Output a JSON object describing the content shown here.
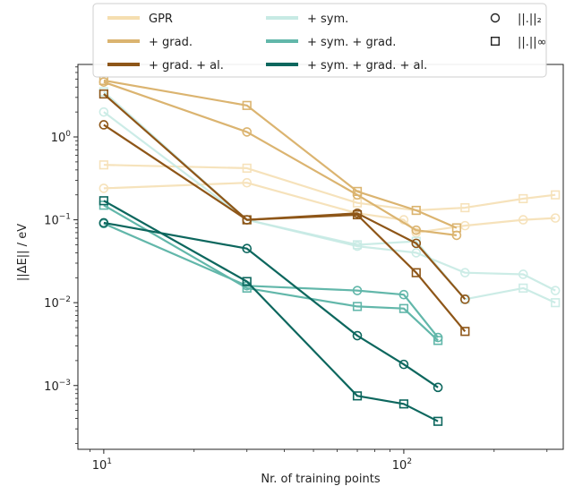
{
  "chart_data": {
    "type": "line",
    "xlabel": "Nr. of training points",
    "ylabel": "||ΔE|| / eV",
    "xscale": "log",
    "yscale": "log",
    "xlim": [
      8.2,
      340
    ],
    "ylim": [
      0.00017,
      7.5
    ],
    "x_ticks": [
      {
        "value": 10,
        "base": "10",
        "exp": "1"
      },
      {
        "value": 100,
        "base": "10",
        "exp": "2"
      }
    ],
    "y_ticks": [
      {
        "value": 0.001,
        "base": "10",
        "exp": "−3"
      },
      {
        "value": 0.01,
        "base": "10",
        "exp": "−2"
      },
      {
        "value": 0.1,
        "base": "10",
        "exp": "−1"
      },
      {
        "value": 1,
        "base": "10",
        "exp": "0"
      }
    ],
    "grid": false,
    "legend_position": "top",
    "marker_legend": [
      {
        "marker": "circle",
        "label": "||.||₂"
      },
      {
        "marker": "square",
        "label": "||.||∞"
      }
    ],
    "series": [
      {
        "name": "GPR",
        "color": "#f5deb0",
        "opacity": 0.85,
        "marker": "circle",
        "points": [
          [
            10,
            0.24
          ],
          [
            30,
            0.28
          ],
          [
            70,
            0.12
          ],
          [
            100,
            0.1
          ],
          [
            110,
            0.07
          ],
          [
            160,
            0.085
          ],
          [
            250,
            0.1
          ],
          [
            320,
            0.105
          ]
        ]
      },
      {
        "name": "GPR",
        "color": "#f5deb0",
        "opacity": 0.85,
        "marker": "square",
        "points": [
          [
            10,
            0.46
          ],
          [
            30,
            0.42
          ],
          [
            70,
            0.16
          ],
          [
            110,
            0.13
          ],
          [
            160,
            0.14
          ],
          [
            250,
            0.18
          ],
          [
            320,
            0.2
          ]
        ]
      },
      {
        "name": "+ sym.",
        "color": "#c7eae4",
        "opacity": 0.9,
        "marker": "circle",
        "points": [
          [
            10,
            2.0
          ],
          [
            30,
            0.1
          ],
          [
            70,
            0.048
          ],
          [
            110,
            0.04
          ],
          [
            160,
            0.023
          ],
          [
            250,
            0.022
          ],
          [
            320,
            0.014
          ]
        ]
      },
      {
        "name": "+ sym.",
        "color": "#c7eae4",
        "opacity": 0.9,
        "marker": "square",
        "points": [
          [
            10,
            3.5
          ],
          [
            30,
            0.1
          ],
          [
            70,
            0.05
          ],
          [
            110,
            0.055
          ],
          [
            160,
            0.011
          ],
          [
            250,
            0.015
          ],
          [
            320,
            0.01
          ]
        ]
      },
      {
        "name": "+ grad.",
        "color": "#dbb470",
        "opacity": 1,
        "marker": "circle",
        "points": [
          [
            10,
            4.6
          ],
          [
            30,
            1.15
          ],
          [
            70,
            0.2
          ],
          [
            110,
            0.075
          ],
          [
            150,
            0.065
          ]
        ]
      },
      {
        "name": "+ grad.",
        "color": "#dbb470",
        "opacity": 1,
        "marker": "square",
        "points": [
          [
            10,
            4.8
          ],
          [
            30,
            2.4
          ],
          [
            70,
            0.22
          ],
          [
            110,
            0.13
          ],
          [
            150,
            0.08
          ]
        ]
      },
      {
        "name": "+ sym. + grad.",
        "color": "#62b7aa",
        "opacity": 1,
        "marker": "circle",
        "points": [
          [
            10,
            0.09
          ],
          [
            30,
            0.016
          ],
          [
            70,
            0.014
          ],
          [
            100,
            0.0125
          ],
          [
            130,
            0.0038
          ]
        ]
      },
      {
        "name": "+ sym. + grad.",
        "color": "#62b7aa",
        "opacity": 1,
        "marker": "square",
        "points": [
          [
            10,
            0.15
          ],
          [
            30,
            0.015
          ],
          [
            70,
            0.009
          ],
          [
            100,
            0.0085
          ],
          [
            130,
            0.0035
          ]
        ]
      },
      {
        "name": "+ grad. + al.",
        "color": "#8e5618",
        "opacity": 1,
        "marker": "circle",
        "points": [
          [
            10,
            1.4
          ],
          [
            30,
            0.1
          ],
          [
            70,
            0.12
          ],
          [
            110,
            0.052
          ],
          [
            160,
            0.011
          ]
        ]
      },
      {
        "name": "+ grad. + al.",
        "color": "#8e5618",
        "opacity": 1,
        "marker": "square",
        "points": [
          [
            10,
            3.3
          ],
          [
            30,
            0.1
          ],
          [
            70,
            0.115
          ],
          [
            110,
            0.023
          ],
          [
            160,
            0.0045
          ]
        ]
      },
      {
        "name": "+ sym. + grad. + al.",
        "color": "#0d675e",
        "opacity": 1,
        "marker": "circle",
        "points": [
          [
            10,
            0.092
          ],
          [
            30,
            0.045
          ],
          [
            70,
            0.004
          ],
          [
            100,
            0.0018
          ],
          [
            130,
            0.00095
          ]
        ]
      },
      {
        "name": "+ sym. + grad. + al.",
        "color": "#0d675e",
        "opacity": 1,
        "marker": "square",
        "points": [
          [
            10,
            0.17
          ],
          [
            30,
            0.018
          ],
          [
            70,
            0.00075
          ],
          [
            100,
            0.0006
          ],
          [
            130,
            0.00037
          ]
        ]
      }
    ],
    "legend": [
      {
        "label": "GPR",
        "color": "#f5deb0"
      },
      {
        "label": "+ grad.",
        "color": "#dbb470"
      },
      {
        "label": "+ grad. + al.",
        "color": "#8e5618"
      },
      {
        "label": "+ sym.",
        "color": "#c7eae4"
      },
      {
        "label": "+ sym. + grad.",
        "color": "#62b7aa"
      },
      {
        "label": "+ sym. + grad. + al.",
        "color": "#0d675e"
      }
    ]
  }
}
